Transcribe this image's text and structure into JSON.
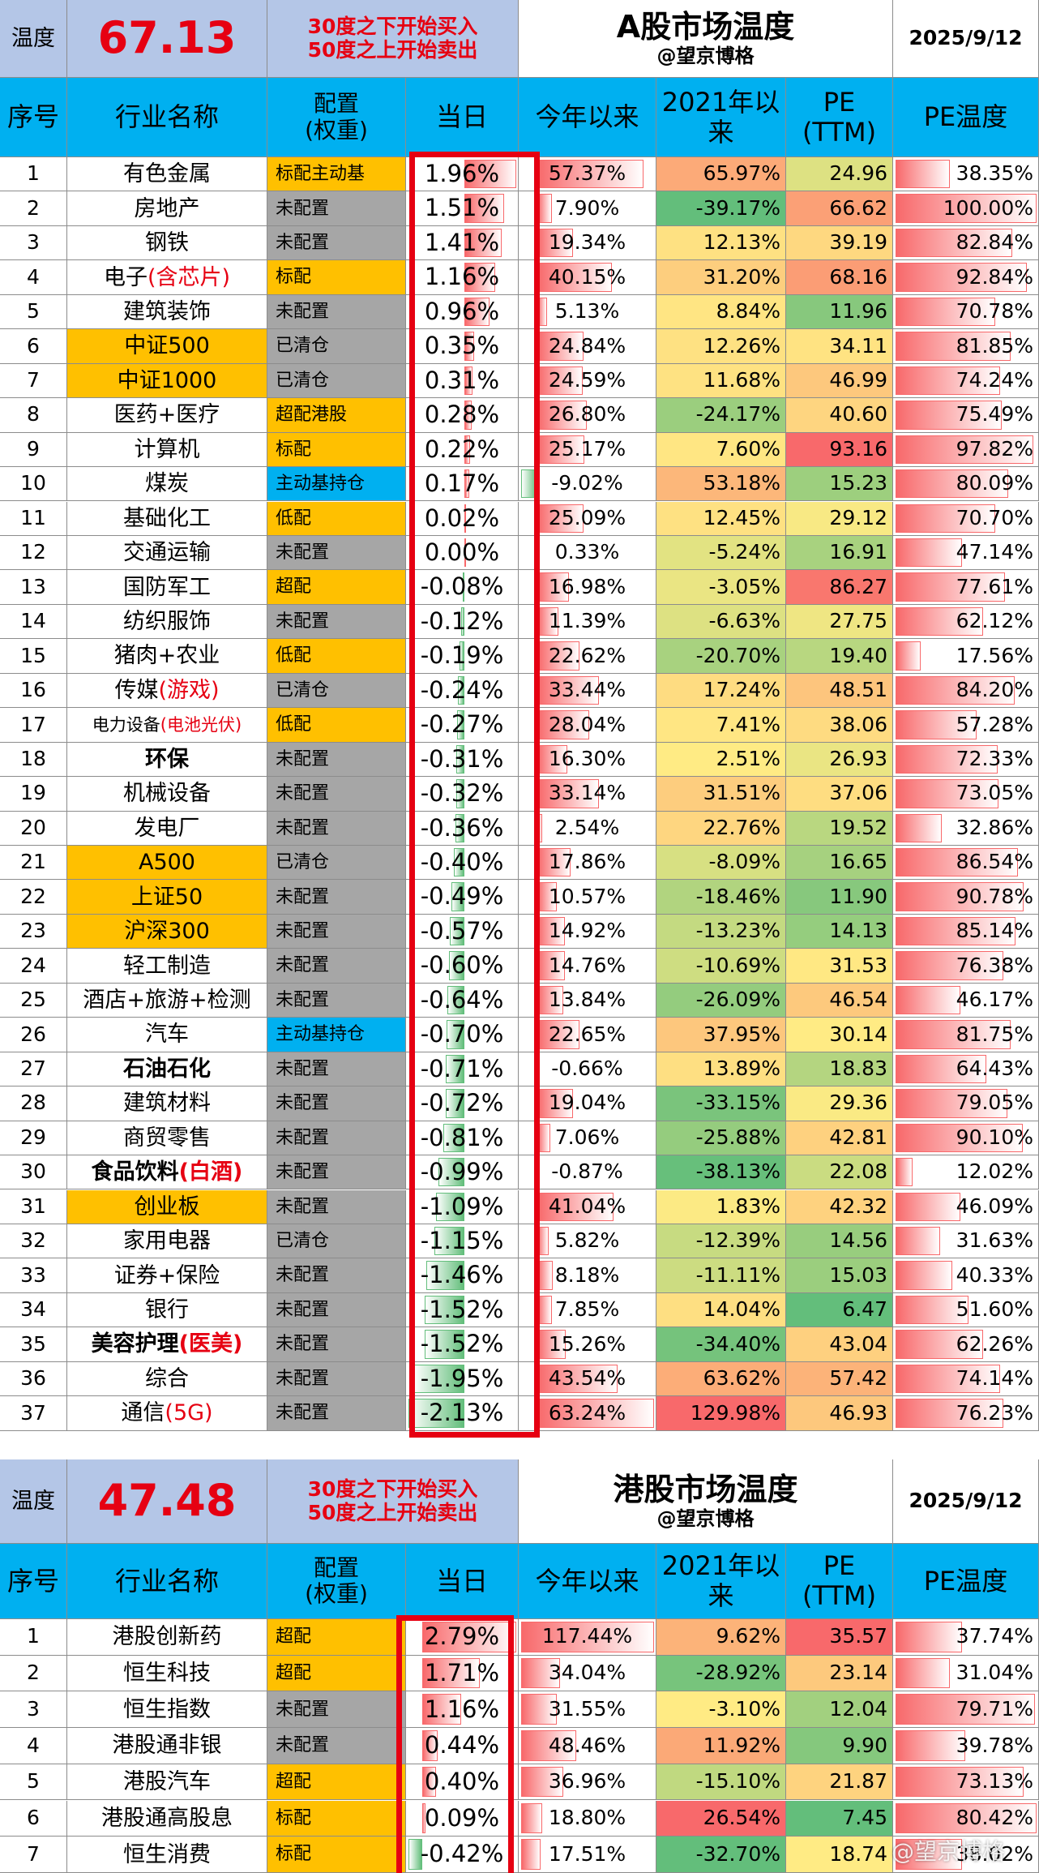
{
  "tables": [
    {
      "temp_label": "温度",
      "temp_value": "67.13",
      "note": [
        "30度之下开始买入",
        "50度之上开始卖出"
      ],
      "title": "A股市场温度",
      "author": "@望京博格",
      "date": "2025/9/12",
      "headers": [
        "序号",
        "行业名称",
        "配置\n(权重)",
        "当日",
        "今年以来",
        "2021年以\n来",
        "PE\n(TTM)",
        "PE温度"
      ],
      "rows": [
        {
          "no": "1",
          "name": "有色金属",
          "alloc": "标配主动基",
          "alloc_color": "#ffc000",
          "day": "1.96%",
          "ytd": "57.37%",
          "since2021": "65.97%",
          "pe": "24.96",
          "pe_temp": "38.35%"
        },
        {
          "no": "2",
          "name": "房地产",
          "alloc": "未配置",
          "alloc_color": "#a6a6a6",
          "day": "1.51%",
          "ytd": "7.90%",
          "since2021": "-39.17%",
          "pe": "66.62",
          "pe_temp": "100.00%"
        },
        {
          "no": "3",
          "name": "钢铁",
          "alloc": "未配置",
          "alloc_color": "#a6a6a6",
          "day": "1.41%",
          "ytd": "19.34%",
          "since2021": "12.13%",
          "pe": "39.19",
          "pe_temp": "82.84%"
        },
        {
          "no": "4",
          "name": "电子",
          "name_red": "(含芯片)",
          "alloc": "标配",
          "alloc_color": "#ffc000",
          "day": "1.16%",
          "ytd": "40.15%",
          "since2021": "31.20%",
          "pe": "68.16",
          "pe_temp": "92.84%"
        },
        {
          "no": "5",
          "name": "建筑装饰",
          "alloc": "未配置",
          "alloc_color": "#a6a6a6",
          "day": "0.96%",
          "ytd": "5.13%",
          "since2021": "8.84%",
          "pe": "11.96",
          "pe_temp": "70.78%"
        },
        {
          "no": "6",
          "name": "中证500",
          "name_bg": "#ffc000",
          "alloc": "已清仓",
          "alloc_color": "#a6a6a6",
          "day": "0.35%",
          "ytd": "24.84%",
          "since2021": "12.26%",
          "pe": "34.11",
          "pe_temp": "81.85%"
        },
        {
          "no": "7",
          "name": "中证1000",
          "name_bg": "#ffc000",
          "alloc": "已清仓",
          "alloc_color": "#a6a6a6",
          "day": "0.31%",
          "ytd": "24.59%",
          "since2021": "11.68%",
          "pe": "46.99",
          "pe_temp": "74.24%"
        },
        {
          "no": "8",
          "name": "医药+医疗",
          "alloc": "超配港股",
          "alloc_color": "#ffc000",
          "day": "0.28%",
          "ytd": "26.80%",
          "since2021": "-24.17%",
          "pe": "40.60",
          "pe_temp": "75.49%"
        },
        {
          "no": "9",
          "name": "计算机",
          "alloc": "标配",
          "alloc_color": "#ffc000",
          "day": "0.22%",
          "ytd": "25.17%",
          "since2021": "7.60%",
          "pe": "93.16",
          "pe_temp": "97.82%"
        },
        {
          "no": "10",
          "name": "煤炭",
          "alloc": "主动基持仓",
          "alloc_color": "#00b0f0",
          "day": "0.17%",
          "ytd": "-9.02%",
          "since2021": "53.18%",
          "pe": "15.23",
          "pe_temp": "80.09%"
        },
        {
          "no": "11",
          "name": "基础化工",
          "alloc": "低配",
          "alloc_color": "#ffc000",
          "day": "0.02%",
          "ytd": "25.09%",
          "since2021": "12.45%",
          "pe": "29.12",
          "pe_temp": "70.70%"
        },
        {
          "no": "12",
          "name": "交通运输",
          "alloc": "未配置",
          "alloc_color": "#a6a6a6",
          "day": "0.00%",
          "ytd": "0.33%",
          "since2021": "-5.24%",
          "pe": "16.91",
          "pe_temp": "47.14%"
        },
        {
          "no": "13",
          "name": "国防军工",
          "alloc": "超配",
          "alloc_color": "#ffc000",
          "day": "-0.08%",
          "ytd": "16.98%",
          "since2021": "-3.05%",
          "pe": "86.27",
          "pe_temp": "77.61%"
        },
        {
          "no": "14",
          "name": "纺织服饰",
          "alloc": "未配置",
          "alloc_color": "#a6a6a6",
          "day": "-0.12%",
          "ytd": "11.39%",
          "since2021": "-6.63%",
          "pe": "27.75",
          "pe_temp": "62.12%"
        },
        {
          "no": "15",
          "name": "猪肉+农业",
          "alloc": "低配",
          "alloc_color": "#ffc000",
          "day": "-0.19%",
          "ytd": "22.62%",
          "since2021": "-20.70%",
          "pe": "19.40",
          "pe_temp": "17.56%"
        },
        {
          "no": "16",
          "name": "传媒",
          "name_red": "(游戏)",
          "alloc": "已清仓",
          "alloc_color": "#a6a6a6",
          "day": "-0.24%",
          "ytd": "33.44%",
          "since2021": "17.24%",
          "pe": "48.51",
          "pe_temp": "84.20%"
        },
        {
          "no": "17",
          "name": "电力设备",
          "name_red": "(电池光伏)",
          "name_small": true,
          "alloc": "低配",
          "alloc_color": "#ffc000",
          "day": "-0.27%",
          "ytd": "28.04%",
          "since2021": "7.41%",
          "pe": "38.06",
          "pe_temp": "57.28%"
        },
        {
          "no": "18",
          "name": "环保",
          "name_bold": true,
          "alloc": "未配置",
          "alloc_color": "#a6a6a6",
          "day": "-0.31%",
          "ytd": "16.30%",
          "since2021": "2.51%",
          "pe": "26.93",
          "pe_temp": "72.33%"
        },
        {
          "no": "19",
          "name": "机械设备",
          "alloc": "未配置",
          "alloc_color": "#a6a6a6",
          "day": "-0.32%",
          "ytd": "33.14%",
          "since2021": "31.51%",
          "pe": "37.06",
          "pe_temp": "73.05%"
        },
        {
          "no": "20",
          "name": "发电厂",
          "alloc": "未配置",
          "alloc_color": "#a6a6a6",
          "day": "-0.36%",
          "ytd": "2.54%",
          "since2021": "22.76%",
          "pe": "19.52",
          "pe_temp": "32.86%"
        },
        {
          "no": "21",
          "name": "A500",
          "name_bg": "#ffc000",
          "alloc": "已清仓",
          "alloc_color": "#a6a6a6",
          "day": "-0.40%",
          "ytd": "17.86%",
          "since2021": "-8.09%",
          "pe": "16.65",
          "pe_temp": "86.54%"
        },
        {
          "no": "22",
          "name": "上证50",
          "name_bg": "#ffc000",
          "alloc": "未配置",
          "alloc_color": "#a6a6a6",
          "day": "-0.49%",
          "ytd": "10.57%",
          "since2021": "-18.46%",
          "pe": "11.90",
          "pe_temp": "90.78%"
        },
        {
          "no": "23",
          "name": "沪深300",
          "name_bg": "#ffc000",
          "alloc": "未配置",
          "alloc_color": "#a6a6a6",
          "day": "-0.57%",
          "ytd": "14.92%",
          "since2021": "-13.23%",
          "pe": "14.13",
          "pe_temp": "85.14%"
        },
        {
          "no": "24",
          "name": "轻工制造",
          "alloc": "未配置",
          "alloc_color": "#a6a6a6",
          "day": "-0.60%",
          "ytd": "14.76%",
          "since2021": "-10.69%",
          "pe": "31.53",
          "pe_temp": "76.38%"
        },
        {
          "no": "25",
          "name": "酒店+旅游+检测",
          "alloc": "未配置",
          "alloc_color": "#a6a6a6",
          "day": "-0.64%",
          "ytd": "13.84%",
          "since2021": "-26.09%",
          "pe": "46.54",
          "pe_temp": "46.17%"
        },
        {
          "no": "26",
          "name": "汽车",
          "alloc": "主动基持仓",
          "alloc_color": "#00b0f0",
          "day": "-0.70%",
          "ytd": "22.65%",
          "since2021": "37.95%",
          "pe": "30.14",
          "pe_temp": "81.75%"
        },
        {
          "no": "27",
          "name": "石油石化",
          "name_bold": true,
          "alloc": "未配置",
          "alloc_color": "#a6a6a6",
          "day": "-0.71%",
          "ytd": "-0.66%",
          "since2021": "13.89%",
          "pe": "18.83",
          "pe_temp": "64.43%"
        },
        {
          "no": "28",
          "name": "建筑材料",
          "alloc": "未配置",
          "alloc_color": "#a6a6a6",
          "day": "-0.72%",
          "ytd": "19.04%",
          "since2021": "-33.15%",
          "pe": "29.36",
          "pe_temp": "79.05%"
        },
        {
          "no": "29",
          "name": "商贸零售",
          "alloc": "未配置",
          "alloc_color": "#a6a6a6",
          "day": "-0.81%",
          "ytd": "7.06%",
          "since2021": "-25.88%",
          "pe": "42.81",
          "pe_temp": "90.10%"
        },
        {
          "no": "30",
          "name": "食品饮料",
          "name_red": "(白酒)",
          "name_bold": true,
          "alloc": "未配置",
          "alloc_color": "#a6a6a6",
          "day": "-0.99%",
          "ytd": "-0.87%",
          "since2021": "-38.13%",
          "pe": "22.08",
          "pe_temp": "12.02%"
        },
        {
          "no": "31",
          "name": "创业板",
          "name_bg": "#ffc000",
          "alloc": "未配置",
          "alloc_color": "#a6a6a6",
          "day": "-1.09%",
          "ytd": "41.04%",
          "since2021": "1.83%",
          "pe": "42.32",
          "pe_temp": "46.09%"
        },
        {
          "no": "32",
          "name": "家用电器",
          "alloc": "已清仓",
          "alloc_color": "#a6a6a6",
          "day": "-1.15%",
          "ytd": "5.82%",
          "since2021": "-12.39%",
          "pe": "14.56",
          "pe_temp": "31.63%"
        },
        {
          "no": "33",
          "name": "证券+保险",
          "alloc": "未配置",
          "alloc_color": "#a6a6a6",
          "day": "-1.46%",
          "ytd": "8.18%",
          "since2021": "-11.11%",
          "pe": "15.03",
          "pe_temp": "40.33%"
        },
        {
          "no": "34",
          "name": "银行",
          "alloc": "未配置",
          "alloc_color": "#a6a6a6",
          "day": "-1.52%",
          "ytd": "7.85%",
          "since2021": "14.04%",
          "pe": "6.47",
          "pe_temp": "51.60%"
        },
        {
          "no": "35",
          "name": "美容护理",
          "name_red": "(医美)",
          "name_bold": true,
          "alloc": "未配置",
          "alloc_color": "#a6a6a6",
          "day": "-1.52%",
          "ytd": "15.26%",
          "since2021": "-34.40%",
          "pe": "43.04",
          "pe_temp": "62.26%"
        },
        {
          "no": "36",
          "name": "综合",
          "alloc": "未配置",
          "alloc_color": "#a6a6a6",
          "day": "-1.95%",
          "ytd": "43.54%",
          "since2021": "63.62%",
          "pe": "57.42",
          "pe_temp": "74.14%"
        },
        {
          "no": "37",
          "name": "通信",
          "name_red": "(5G)",
          "alloc": "未配置",
          "alloc_color": "#a6a6a6",
          "day": "-2.13%",
          "ytd": "63.24%",
          "since2021": "129.98%",
          "pe": "46.93",
          "pe_temp": "76.23%"
        }
      ]
    },
    {
      "temp_label": "温度",
      "temp_value": "47.48",
      "note": [
        "30度之下开始买入",
        "50度之上开始卖出"
      ],
      "title": "港股市场温度",
      "author": "@望京博格",
      "date": "2025/9/12",
      "headers": [
        "序号",
        "行业名称",
        "配置\n(权重)",
        "当日",
        "今年以来",
        "2021年以\n来",
        "PE\n(TTM)",
        "PE温度"
      ],
      "rows": [
        {
          "no": "1",
          "name": "港股创新药",
          "alloc": "超配",
          "alloc_color": "#ffc000",
          "day": "2.79%",
          "ytd": "117.44%",
          "since2021": "9.62%",
          "pe": "35.57",
          "pe_temp": "37.74%"
        },
        {
          "no": "2",
          "name": "恒生科技",
          "alloc": "超配",
          "alloc_color": "#ffc000",
          "day": "1.71%",
          "ytd": "34.04%",
          "since2021": "-28.92%",
          "pe": "23.14",
          "pe_temp": "31.04%"
        },
        {
          "no": "3",
          "name": "恒生指数",
          "alloc": "未配置",
          "alloc_color": "#a6a6a6",
          "day": "1.16%",
          "ytd": "31.55%",
          "since2021": "-3.10%",
          "pe": "12.04",
          "pe_temp": "79.71%"
        },
        {
          "no": "4",
          "name": "港股通非银",
          "alloc": "未配置",
          "alloc_color": "#a6a6a6",
          "day": "0.44%",
          "ytd": "48.46%",
          "since2021": "11.92%",
          "pe": "9.90",
          "pe_temp": "39.78%"
        },
        {
          "no": "5",
          "name": "港股汽车",
          "alloc": "超配",
          "alloc_color": "#ffc000",
          "day": "0.40%",
          "ytd": "36.96%",
          "since2021": "-15.10%",
          "pe": "21.87",
          "pe_temp": "73.13%"
        },
        {
          "no": "6",
          "name": "港股通高股息",
          "alloc": "标配",
          "alloc_color": "#ffc000",
          "day": "0.09%",
          "ytd": "18.80%",
          "since2021": "26.54%",
          "pe": "7.45",
          "pe_temp": "80.42%"
        },
        {
          "no": "7",
          "name": "恒生消费",
          "alloc": "标配",
          "alloc_color": "#ffc000",
          "day": "-0.42%",
          "ytd": "17.51%",
          "since2021": "-32.70%",
          "pe": "18.74",
          "pe_temp": "38.02%"
        }
      ]
    }
  ],
  "watermark": "@望京博格"
}
